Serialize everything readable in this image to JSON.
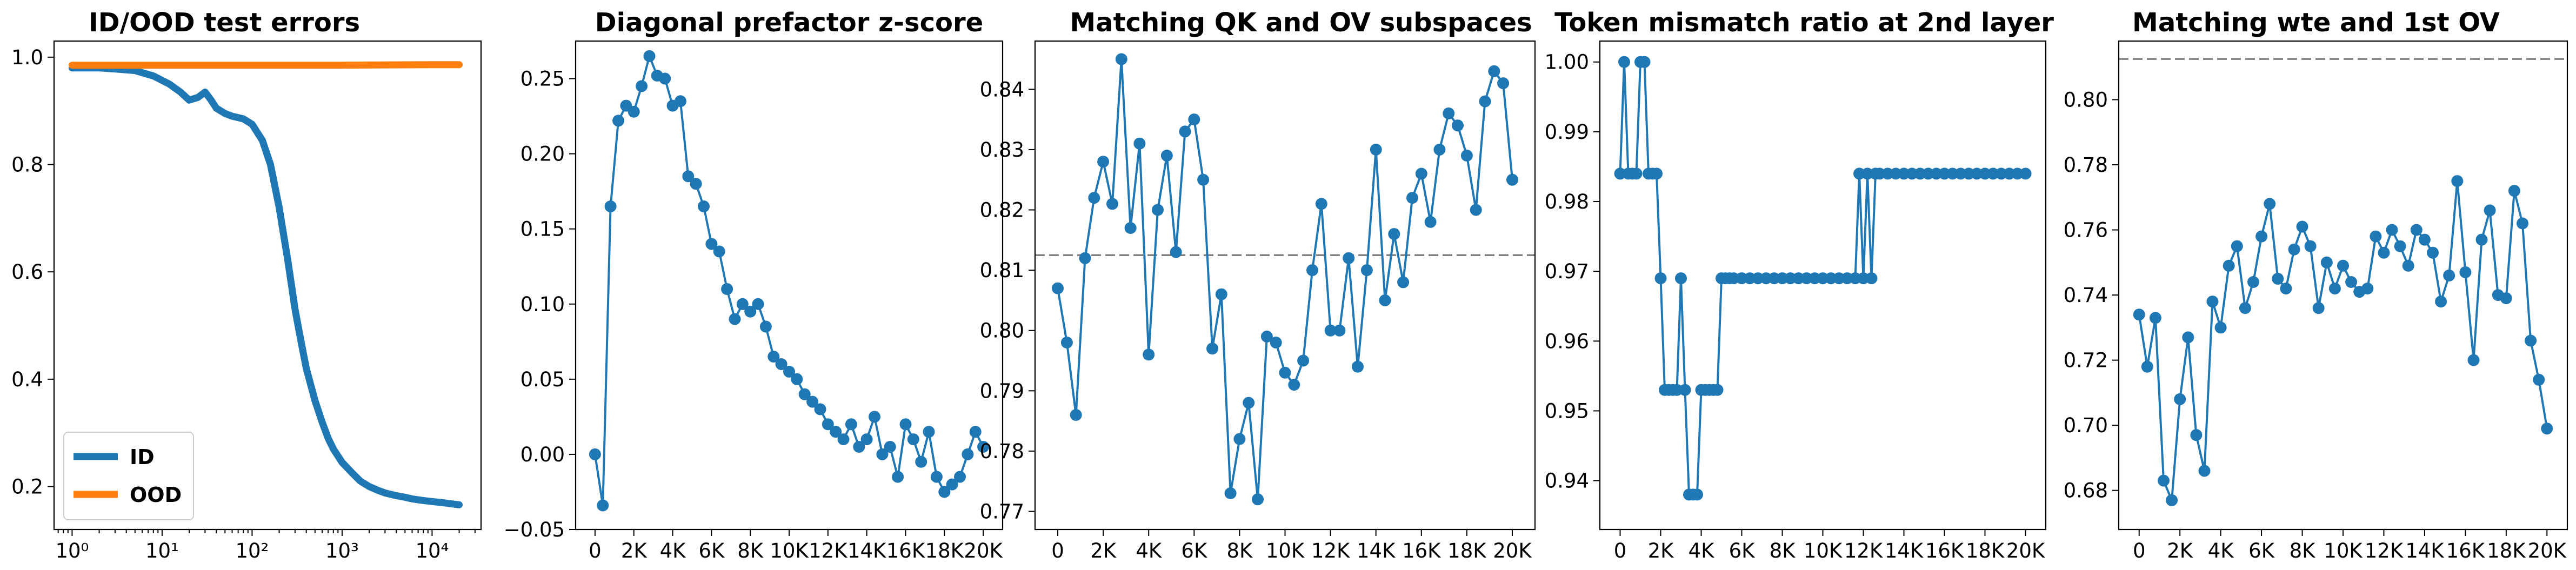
{
  "chart_data": [
    {
      "type": "line",
      "title": "ID/OOD test errors",
      "xlabel": "",
      "ylabel": "",
      "xscale": "log",
      "xlim": [
        0.63,
        35000
      ],
      "ylim": [
        0.12,
        1.03
      ],
      "xticks": [
        {
          "value": 1,
          "label": "10⁰"
        },
        {
          "value": 10,
          "label": "10¹"
        },
        {
          "value": 100,
          "label": "10²"
        },
        {
          "value": 1000,
          "label": "10³"
        },
        {
          "value": 10000,
          "label": "10⁴"
        }
      ],
      "yticks": [
        {
          "value": 0.2,
          "label": "0.2"
        },
        {
          "value": 0.4,
          "label": "0.4"
        },
        {
          "value": 0.6,
          "label": "0.6"
        },
        {
          "value": 0.8,
          "label": "0.8"
        },
        {
          "value": 1.0,
          "label": "1.0"
        }
      ],
      "grid": false,
      "legend": "lower-left",
      "series": [
        {
          "name": "ID",
          "color": "#1f77b4",
          "x": [
            1,
            2,
            3,
            5,
            8,
            12,
            16,
            20,
            25,
            30,
            35,
            40,
            50,
            60,
            80,
            100,
            130,
            160,
            200,
            250,
            300,
            350,
            400,
            500,
            600,
            700,
            800,
            1000,
            1300,
            1600,
            2000,
            2500,
            3000,
            4000,
            5000,
            6000,
            8000,
            10000,
            13000,
            16000,
            20000
          ],
          "y": [
            0.98,
            0.98,
            0.978,
            0.975,
            0.965,
            0.95,
            0.935,
            0.92,
            0.925,
            0.935,
            0.92,
            0.905,
            0.895,
            0.89,
            0.885,
            0.875,
            0.845,
            0.8,
            0.72,
            0.62,
            0.53,
            0.47,
            0.42,
            0.36,
            0.32,
            0.29,
            0.27,
            0.245,
            0.225,
            0.21,
            0.2,
            0.193,
            0.188,
            0.183,
            0.18,
            0.177,
            0.174,
            0.172,
            0.17,
            0.168,
            0.166
          ]
        },
        {
          "name": "OOD",
          "color": "#ff7f0e",
          "x": [
            1,
            10,
            100,
            1000,
            10000,
            20000
          ],
          "y": [
            0.985,
            0.985,
            0.985,
            0.985,
            0.986,
            0.986
          ]
        }
      ]
    },
    {
      "type": "line",
      "title": "Diagonal prefactor z-score",
      "xlabel": "",
      "ylabel": "",
      "xlim": [
        -1000,
        21000
      ],
      "ylim": [
        -0.05,
        0.275
      ],
      "xticks": [
        {
          "value": 0,
          "label": "0"
        },
        {
          "value": 2000,
          "label": "2K"
        },
        {
          "value": 4000,
          "label": "4K"
        },
        {
          "value": 6000,
          "label": "6K"
        },
        {
          "value": 8000,
          "label": "8K"
        },
        {
          "value": 10000,
          "label": "10K"
        },
        {
          "value": 12000,
          "label": "12K"
        },
        {
          "value": 14000,
          "label": "14K"
        },
        {
          "value": 16000,
          "label": "16K"
        },
        {
          "value": 18000,
          "label": "18K"
        },
        {
          "value": 20000,
          "label": "20K"
        }
      ],
      "yticks": [
        {
          "value": -0.05,
          "label": "−0.05"
        },
        {
          "value": 0.0,
          "label": "0.00"
        },
        {
          "value": 0.05,
          "label": "0.05"
        },
        {
          "value": 0.1,
          "label": "0.10"
        },
        {
          "value": 0.15,
          "label": "0.15"
        },
        {
          "value": 0.2,
          "label": "0.20"
        },
        {
          "value": 0.25,
          "label": "0.25"
        }
      ],
      "grid": false,
      "series": [
        {
          "color": "#1f77b4",
          "x": [
            0,
            400,
            800,
            1200,
            1600,
            2000,
            2400,
            2800,
            3200,
            3600,
            4000,
            4400,
            4800,
            5200,
            5600,
            6000,
            6400,
            6800,
            7200,
            7600,
            8000,
            8400,
            8800,
            9200,
            9600,
            10000,
            10400,
            10800,
            11200,
            11600,
            12000,
            12400,
            12800,
            13200,
            13600,
            14000,
            14400,
            14800,
            15200,
            15600,
            16000,
            16400,
            16800,
            17200,
            17600,
            18000,
            18400,
            18800,
            19200,
            19600,
            20000
          ],
          "y": [
            0.0,
            -0.034,
            0.165,
            0.222,
            0.232,
            0.228,
            0.245,
            0.265,
            0.252,
            0.25,
            0.232,
            0.235,
            0.185,
            0.18,
            0.165,
            0.14,
            0.135,
            0.11,
            0.09,
            0.1,
            0.095,
            0.1,
            0.085,
            0.065,
            0.06,
            0.055,
            0.05,
            0.04,
            0.035,
            0.03,
            0.02,
            0.015,
            0.01,
            0.02,
            0.005,
            0.01,
            0.025,
            0.0,
            0.005,
            -0.015,
            0.02,
            0.01,
            -0.005,
            0.015,
            -0.015,
            -0.025,
            -0.02,
            -0.015,
            0.0,
            0.015,
            0.005
          ]
        }
      ]
    },
    {
      "type": "line",
      "title": "Matching QK and OV subspaces",
      "xlabel": "",
      "ylabel": "",
      "xlim": [
        -1000,
        21000
      ],
      "ylim": [
        0.767,
        0.848
      ],
      "xticks": [
        {
          "value": 0,
          "label": "0"
        },
        {
          "value": 2000,
          "label": "2K"
        },
        {
          "value": 4000,
          "label": "4K"
        },
        {
          "value": 6000,
          "label": "6K"
        },
        {
          "value": 8000,
          "label": "8K"
        },
        {
          "value": 10000,
          "label": "10K"
        },
        {
          "value": 12000,
          "label": "12K"
        },
        {
          "value": 14000,
          "label": "14K"
        },
        {
          "value": 16000,
          "label": "16K"
        },
        {
          "value": 18000,
          "label": "18K"
        },
        {
          "value": 20000,
          "label": "20K"
        }
      ],
      "yticks": [
        {
          "value": 0.77,
          "label": "0.77"
        },
        {
          "value": 0.78,
          "label": "0.78"
        },
        {
          "value": 0.79,
          "label": "0.79"
        },
        {
          "value": 0.8,
          "label": "0.80"
        },
        {
          "value": 0.81,
          "label": "0.81"
        },
        {
          "value": 0.82,
          "label": "0.82"
        },
        {
          "value": 0.83,
          "label": "0.83"
        },
        {
          "value": 0.84,
          "label": "0.84"
        }
      ],
      "grid": false,
      "reference_line": 0.8125,
      "series": [
        {
          "color": "#1f77b4",
          "x": [
            0,
            400,
            800,
            1200,
            1600,
            2000,
            2400,
            2800,
            3200,
            3600,
            4000,
            4400,
            4800,
            5200,
            5600,
            6000,
            6400,
            6800,
            7200,
            7600,
            8000,
            8400,
            8800,
            9200,
            9600,
            10000,
            10400,
            10800,
            11200,
            11600,
            12000,
            12400,
            12800,
            13200,
            13600,
            14000,
            14400,
            14800,
            15200,
            15600,
            16000,
            16400,
            16800,
            17200,
            17600,
            18000,
            18400,
            18800,
            19200,
            19600,
            20000
          ],
          "y": [
            0.807,
            0.798,
            0.786,
            0.812,
            0.822,
            0.828,
            0.821,
            0.845,
            0.817,
            0.831,
            0.796,
            0.82,
            0.829,
            0.813,
            0.833,
            0.835,
            0.825,
            0.797,
            0.806,
            0.773,
            0.782,
            0.788,
            0.772,
            0.799,
            0.798,
            0.793,
            0.791,
            0.795,
            0.81,
            0.821,
            0.8,
            0.8,
            0.812,
            0.794,
            0.81,
            0.83,
            0.805,
            0.816,
            0.808,
            0.822,
            0.826,
            0.818,
            0.83,
            0.836,
            0.834,
            0.829,
            0.82,
            0.838,
            0.843,
            0.841,
            0.825
          ]
        }
      ]
    },
    {
      "type": "line",
      "title": "Token mismatch ratio at 2nd layer",
      "xlabel": "",
      "ylabel": "",
      "xlim": [
        -1000,
        21000
      ],
      "ylim": [
        0.933,
        1.003
      ],
      "xticks": [
        {
          "value": 0,
          "label": "0"
        },
        {
          "value": 2000,
          "label": "2K"
        },
        {
          "value": 4000,
          "label": "4K"
        },
        {
          "value": 6000,
          "label": "6K"
        },
        {
          "value": 8000,
          "label": "8K"
        },
        {
          "value": 10000,
          "label": "10K"
        },
        {
          "value": 12000,
          "label": "12K"
        },
        {
          "value": 14000,
          "label": "14K"
        },
        {
          "value": 16000,
          "label": "16K"
        },
        {
          "value": 18000,
          "label": "18K"
        },
        {
          "value": 20000,
          "label": "20K"
        }
      ],
      "yticks": [
        {
          "value": 0.94,
          "label": "0.94"
        },
        {
          "value": 0.95,
          "label": "0.95"
        },
        {
          "value": 0.96,
          "label": "0.96"
        },
        {
          "value": 0.97,
          "label": "0.97"
        },
        {
          "value": 0.98,
          "label": "0.98"
        },
        {
          "value": 0.99,
          "label": "0.99"
        },
        {
          "value": 1.0,
          "label": "1.00"
        }
      ],
      "grid": false,
      "series": [
        {
          "color": "#1f77b4",
          "x": [
            0,
            200,
            400,
            600,
            800,
            1000,
            1200,
            1400,
            1600,
            1800,
            2000,
            2200,
            2400,
            2600,
            2800,
            3000,
            3200,
            3400,
            3600,
            3800,
            4000,
            4200,
            4400,
            4600,
            4800,
            5000,
            5200,
            5400,
            5600,
            6000,
            6400,
            6800,
            7200,
            7600,
            8000,
            8400,
            8800,
            9200,
            9600,
            10000,
            10400,
            10800,
            11200,
            11600,
            11800,
            12000,
            12200,
            12400,
            12600,
            12800,
            13200,
            13600,
            14000,
            14400,
            14800,
            15200,
            15600,
            16000,
            16400,
            16800,
            17200,
            17600,
            18000,
            18400,
            18800,
            19200,
            19600,
            20000
          ],
          "y": [
            0.984,
            1.0,
            0.984,
            0.984,
            0.984,
            1.0,
            1.0,
            0.984,
            0.984,
            0.984,
            0.969,
            0.953,
            0.953,
            0.953,
            0.953,
            0.969,
            0.953,
            0.938,
            0.938,
            0.938,
            0.953,
            0.953,
            0.953,
            0.953,
            0.953,
            0.969,
            0.969,
            0.969,
            0.969,
            0.969,
            0.969,
            0.969,
            0.969,
            0.969,
            0.969,
            0.969,
            0.969,
            0.969,
            0.969,
            0.969,
            0.969,
            0.969,
            0.969,
            0.969,
            0.984,
            0.969,
            0.984,
            0.969,
            0.984,
            0.984,
            0.984,
            0.984,
            0.984,
            0.984,
            0.984,
            0.984,
            0.984,
            0.984,
            0.984,
            0.984,
            0.984,
            0.984,
            0.984,
            0.984,
            0.984,
            0.984,
            0.984,
            0.984
          ]
        }
      ]
    },
    {
      "type": "line",
      "title": "Matching wte and 1st OV",
      "xlabel": "",
      "ylabel": "",
      "xlim": [
        -1000,
        21000
      ],
      "ylim": [
        0.668,
        0.818
      ],
      "xticks": [
        {
          "value": 0,
          "label": "0"
        },
        {
          "value": 2000,
          "label": "2K"
        },
        {
          "value": 4000,
          "label": "4K"
        },
        {
          "value": 6000,
          "label": "6K"
        },
        {
          "value": 8000,
          "label": "8K"
        },
        {
          "value": 10000,
          "label": "10K"
        },
        {
          "value": 12000,
          "label": "12K"
        },
        {
          "value": 14000,
          "label": "14K"
        },
        {
          "value": 16000,
          "label": "16K"
        },
        {
          "value": 18000,
          "label": "18K"
        },
        {
          "value": 20000,
          "label": "20K"
        }
      ],
      "yticks": [
        {
          "value": 0.68,
          "label": "0.68"
        },
        {
          "value": 0.7,
          "label": "0.70"
        },
        {
          "value": 0.72,
          "label": "0.72"
        },
        {
          "value": 0.74,
          "label": "0.74"
        },
        {
          "value": 0.76,
          "label": "0.76"
        },
        {
          "value": 0.78,
          "label": "0.78"
        },
        {
          "value": 0.8,
          "label": "0.80"
        }
      ],
      "grid": false,
      "reference_line": 0.8125,
      "series": [
        {
          "color": "#1f77b4",
          "x": [
            0,
            400,
            800,
            1200,
            1600,
            2000,
            2400,
            2800,
            3200,
            3600,
            4000,
            4400,
            4800,
            5200,
            5600,
            6000,
            6400,
            6800,
            7200,
            7600,
            8000,
            8400,
            8800,
            9200,
            9600,
            10000,
            10400,
            10800,
            11200,
            11600,
            12000,
            12400,
            12800,
            13200,
            13600,
            14000,
            14400,
            14800,
            15200,
            15600,
            16000,
            16400,
            16800,
            17200,
            17600,
            18000,
            18400,
            18800,
            19200,
            19600,
            20000
          ],
          "y": [
            0.734,
            0.718,
            0.733,
            0.683,
            0.677,
            0.708,
            0.727,
            0.697,
            0.686,
            0.738,
            0.73,
            0.749,
            0.755,
            0.736,
            0.744,
            0.758,
            0.768,
            0.745,
            0.742,
            0.754,
            0.761,
            0.755,
            0.736,
            0.75,
            0.742,
            0.749,
            0.744,
            0.741,
            0.742,
            0.758,
            0.753,
            0.76,
            0.755,
            0.749,
            0.76,
            0.757,
            0.753,
            0.738,
            0.746,
            0.775,
            0.747,
            0.72,
            0.757,
            0.766,
            0.74,
            0.739,
            0.772,
            0.762,
            0.726,
            0.714,
            0.699
          ]
        }
      ]
    }
  ]
}
